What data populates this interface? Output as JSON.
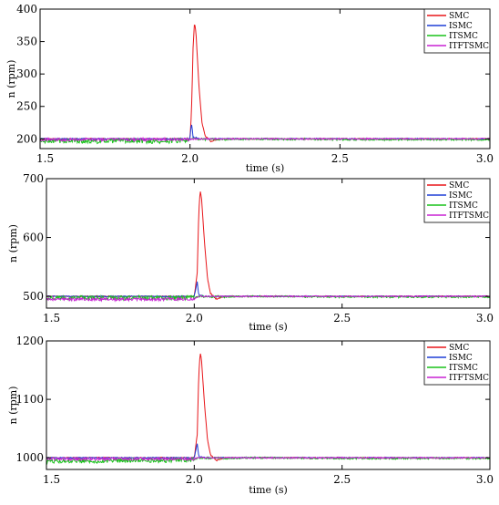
{
  "chart_data": [
    {
      "type": "line",
      "title": "",
      "xlabel": "time (s)",
      "ylabel": "n (rpm)",
      "xlim": [
        1.5,
        3.0
      ],
      "ylim": [
        185,
        400
      ],
      "xticks": [
        1.5,
        2.0,
        2.5,
        3.0
      ],
      "xtick_labels": [
        "1.5",
        "2.0",
        "2.5",
        "3.0"
      ],
      "yticks": [
        200,
        250,
        300,
        350,
        400
      ],
      "ytick_labels": [
        "200",
        "250",
        "300",
        "350",
        "400"
      ],
      "grid": false,
      "legend_position": "top-right",
      "reference": 200,
      "x": [
        1.5,
        1.6,
        1.7,
        1.8,
        1.9,
        2.0,
        2.005,
        2.01,
        2.015,
        2.02,
        2.03,
        2.04,
        2.05,
        2.07,
        2.1,
        2.2,
        2.5,
        3.0
      ],
      "series": [
        {
          "name": "SMC",
          "color": "#e8161a",
          "values": [
            200,
            200,
            200,
            200,
            200,
            200,
            240,
            340,
            381,
            362,
            280,
            225,
            205,
            196,
            200,
            200,
            200,
            200
          ]
        },
        {
          "name": "ISMC",
          "color": "#1f3fd6",
          "values": [
            200,
            200,
            200,
            200,
            200,
            200,
            225,
            203,
            201,
            202,
            200,
            200,
            200,
            200,
            200,
            200,
            200,
            200
          ]
        },
        {
          "name": "ITSMC",
          "color": "#18c21a",
          "values": [
            196,
            197,
            196,
            197,
            196,
            198,
            199,
            200,
            200,
            200,
            199,
            200,
            199,
            200,
            199,
            200,
            199,
            199
          ]
        },
        {
          "name": "ITFTSMC",
          "color": "#c922d4",
          "values": [
            199,
            199,
            199,
            199,
            199,
            199,
            200,
            200,
            200,
            200,
            200,
            200,
            200,
            200,
            200,
            200,
            200,
            200
          ]
        }
      ]
    },
    {
      "type": "line",
      "title": "",
      "xlabel": "time (s)",
      "ylabel": "n (rpm)",
      "xlim": [
        1.5,
        3.0
      ],
      "ylim": [
        480,
        700
      ],
      "xticks": [
        1.5,
        2.0,
        2.5,
        3.0
      ],
      "xtick_labels": [
        "1.5",
        "2.0",
        "2.5",
        "3.0"
      ],
      "yticks": [
        500,
        600,
        700
      ],
      "ytick_labels": [
        "500",
        "600",
        "700"
      ],
      "grid": false,
      "legend_position": "top-right",
      "reference": 500,
      "x": [
        1.5,
        1.6,
        1.7,
        1.8,
        1.9,
        2.0,
        2.01,
        2.015,
        2.02,
        2.025,
        2.035,
        2.045,
        2.055,
        2.075,
        2.1,
        2.2,
        2.5,
        3.0
      ],
      "series": [
        {
          "name": "SMC",
          "color": "#e8161a",
          "values": [
            500,
            500,
            500,
            500,
            500,
            500,
            540,
            640,
            681,
            665,
            590,
            530,
            505,
            495,
            500,
            500,
            500,
            500
          ]
        },
        {
          "name": "ISMC",
          "color": "#1f3fd6",
          "values": [
            500,
            500,
            500,
            500,
            500,
            500,
            525,
            503,
            501,
            502,
            500,
            500,
            500,
            500,
            500,
            500,
            500,
            500
          ]
        },
        {
          "name": "ITSMC",
          "color": "#18c21a",
          "values": [
            497,
            498,
            497,
            498,
            497,
            498,
            499,
            500,
            500,
            500,
            499,
            500,
            499,
            500,
            499,
            500,
            499,
            499
          ]
        },
        {
          "name": "ITFTSMC",
          "color": "#c922d4",
          "values": [
            495,
            495,
            495,
            495,
            495,
            496,
            499,
            500,
            500,
            500,
            500,
            500,
            500,
            500,
            500,
            500,
            500,
            500
          ]
        }
      ]
    },
    {
      "type": "line",
      "title": "",
      "xlabel": "time (s)",
      "ylabel": "n (rpm)",
      "xlim": [
        1.5,
        3.0
      ],
      "ylim": [
        980,
        1200
      ],
      "xticks": [
        1.5,
        2.0,
        2.5,
        3.0
      ],
      "xtick_labels": [
        "1.5",
        "2.0",
        "2.5",
        "3.0"
      ],
      "yticks": [
        1000,
        1100,
        1200
      ],
      "ytick_labels": [
        "1000",
        "1100",
        "1200"
      ],
      "grid": false,
      "legend_position": "top-right",
      "reference": 1000,
      "x": [
        1.5,
        1.6,
        1.7,
        1.8,
        1.9,
        2.0,
        2.01,
        2.015,
        2.02,
        2.025,
        2.035,
        2.045,
        2.055,
        2.075,
        2.1,
        2.2,
        2.5,
        3.0
      ],
      "series": [
        {
          "name": "SMC",
          "color": "#e8161a",
          "values": [
            1000,
            1000,
            1000,
            1000,
            1000,
            1000,
            1040,
            1140,
            1181,
            1165,
            1090,
            1030,
            1005,
            995,
            1000,
            1000,
            1000,
            1000
          ]
        },
        {
          "name": "ISMC",
          "color": "#1f3fd6",
          "values": [
            1000,
            1000,
            1000,
            1000,
            1000,
            1000,
            1025,
            1003,
            1001,
            1002,
            1000,
            1000,
            1000,
            1000,
            1000,
            1000,
            1000,
            1000
          ]
        },
        {
          "name": "ITSMC",
          "color": "#18c21a",
          "values": [
            994,
            995,
            994,
            996,
            995,
            997,
            999,
            1000,
            1000,
            1000,
            999,
            1000,
            999,
            1000,
            999,
            1000,
            999,
            999
          ]
        },
        {
          "name": "ITFTSMC",
          "color": "#c922d4",
          "values": [
            998,
            998,
            998,
            998,
            998,
            998,
            1000,
            1000,
            1000,
            1000,
            1000,
            1000,
            1000,
            1000,
            1000,
            1000,
            1000,
            1000
          ]
        }
      ]
    }
  ]
}
